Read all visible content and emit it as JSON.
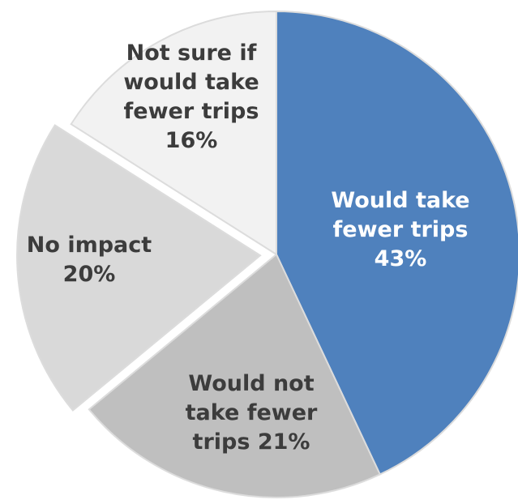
{
  "chart_data": {
    "type": "pie",
    "slices": [
      {
        "label_lines": [
          "Would take",
          "fewer trips",
          "43%"
        ],
        "value": 43,
        "color": "#4f81bd",
        "text_color": "#ffffff"
      },
      {
        "label_lines": [
          "Would not",
          "take fewer",
          "trips 21%"
        ],
        "value": 21,
        "color": "#bfbfbf",
        "text_color": "#3c3c3c"
      },
      {
        "label_lines": [
          "No impact",
          "20%"
        ],
        "value": 20,
        "color": "#d9d9d9",
        "text_color": "#3c3c3c"
      },
      {
        "label_lines": [
          "Not sure if",
          "would take",
          "fewer trips",
          "16%"
        ],
        "value": 16,
        "color": "#f2f2f2",
        "text_color": "#3c3c3c"
      }
    ],
    "slice_border_color": "#dcdcdc",
    "background_color": "#ffffff"
  }
}
